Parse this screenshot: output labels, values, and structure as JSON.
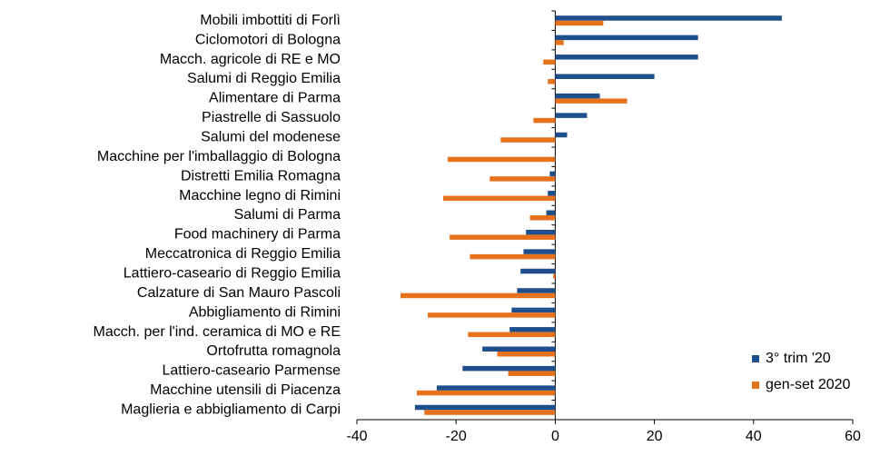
{
  "chart_data": {
    "type": "bar",
    "orientation": "horizontal",
    "categories": [
      "Mobili imbottiti di Forlì",
      "Ciclomotori di Bologna",
      "Macch. agricole di RE e MO",
      "Salumi di Reggio Emilia",
      "Alimentare di Parma",
      "Piastrelle di Sassuolo",
      "Salumi del modenese",
      "Macchine per l'imballaggio di Bologna",
      "Distretti Emilia Romagna",
      "Macchine legno di Rimini",
      "Salumi di Parma",
      "Food machinery di Parma",
      "Meccatronica di Reggio Emilia",
      "Lattiero-caseario di Reggio Emilia",
      "Calzature di San Mauro Pascoli",
      "Abbigliamento di Rimini",
      "Macch. per l'ind. ceramica di MO e RE",
      "Ortofrutta romagnola",
      "Lattiero-caseario Parmense",
      "Macchine utensili di Piacenza",
      "Maglieria e abbigliamento di Carpi"
    ],
    "series": [
      {
        "name": "3° trim '20",
        "color": "#1f4e8c",
        "values": [
          45.7,
          28.8,
          28.8,
          20,
          9,
          6.4,
          2.4,
          0,
          -1.1,
          -1.5,
          -1.8,
          -5.9,
          -6.4,
          -7,
          -7.7,
          -8.8,
          -9.2,
          -14.7,
          -18.7,
          -23.9,
          -28.3
        ]
      },
      {
        "name": "gen-set 2020",
        "color": "#e8711c",
        "values": [
          9.7,
          1.7,
          -2.4,
          -1.5,
          14.5,
          -4.4,
          -11,
          -21.7,
          -13.2,
          -22.6,
          -5.1,
          -21.3,
          -17.2,
          -0.4,
          -31.2,
          -25.7,
          -17.6,
          -11.7,
          -9.5,
          -27.9,
          -26.4
        ]
      }
    ],
    "xlim": [
      -40,
      60
    ],
    "xticks": [
      -40,
      -20,
      0,
      20,
      40,
      60
    ],
    "legend": "lower right"
  }
}
